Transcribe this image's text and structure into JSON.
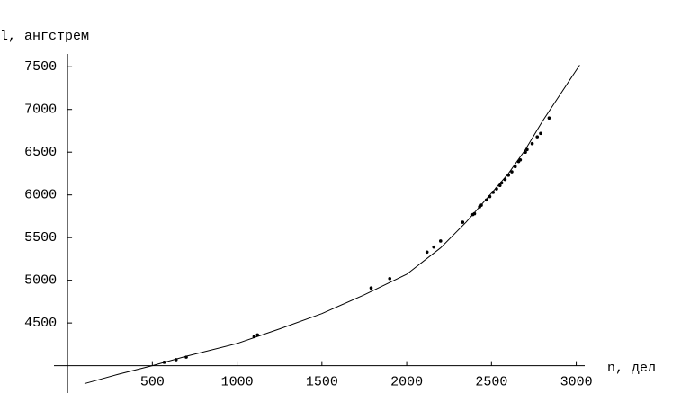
{
  "chart_data": {
    "type": "scatter",
    "y_label": "l, ангстрем",
    "x_label": "n, дел",
    "xlim": [
      -80,
      3050
    ],
    "ylim": [
      3680,
      7650
    ],
    "xticks": [
      500,
      1000,
      1500,
      2000,
      2500,
      3000
    ],
    "yticks": [
      4500,
      5000,
      5500,
      6000,
      6500,
      7000,
      7500
    ],
    "color": "#000000",
    "curve": {
      "x": [
        100,
        300,
        500,
        700,
        1000,
        1250,
        1500,
        1750,
        2000,
        2200,
        2350,
        2500,
        2600,
        2700,
        2800,
        2900,
        3020
      ],
      "values": [
        3790,
        3900,
        4000,
        4110,
        4260,
        4430,
        4610,
        4830,
        5070,
        5380,
        5680,
        6020,
        6250,
        6530,
        6860,
        7160,
        7520
      ]
    },
    "x": [
      570,
      640,
      700,
      1100,
      1120,
      1790,
      1900,
      2120,
      2160,
      2200,
      2330,
      2390,
      2400,
      2430,
      2440,
      2470,
      2490,
      2510,
      2530,
      2550,
      2560,
      2580,
      2600,
      2620,
      2640,
      2660,
      2670,
      2700,
      2710,
      2740,
      2770,
      2790,
      2840
    ],
    "values": [
      4040,
      4070,
      4100,
      4340,
      4360,
      4910,
      5020,
      5330,
      5390,
      5460,
      5680,
      5770,
      5780,
      5860,
      5880,
      5940,
      5980,
      6030,
      6070,
      6110,
      6140,
      6180,
      6230,
      6270,
      6330,
      6390,
      6410,
      6500,
      6530,
      6600,
      6680,
      6720,
      6900
    ]
  }
}
